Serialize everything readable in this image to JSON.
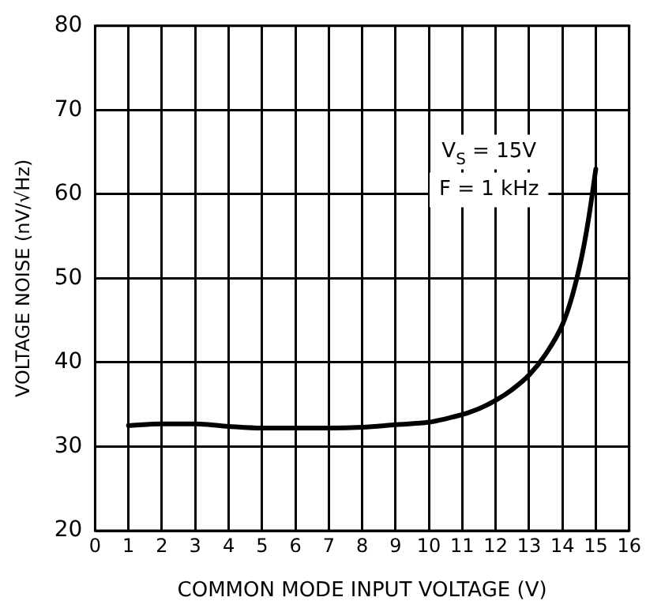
{
  "chart_data": {
    "type": "line",
    "xlabel": "COMMON MODE INPUT VOLTAGE (V)",
    "ylabel": "VOLTAGE NOISE (nV/√Hz)",
    "annotations": [
      "V$_{S}$ = 15V",
      "F = 1 kHz"
    ],
    "x": [
      1,
      2,
      3,
      4,
      5,
      6,
      7,
      8,
      9,
      10,
      10.5,
      11,
      11.5,
      12,
      12.5,
      13,
      13.5,
      14,
      14.3,
      14.6,
      14.8,
      15
    ],
    "series": [
      {
        "color": "#000000",
        "values": [
          32.5,
          32.7,
          32.7,
          32.4,
          32.2,
          32.2,
          32.2,
          32.3,
          32.6,
          32.9,
          33.3,
          33.8,
          34.5,
          35.5,
          36.8,
          38.5,
          41,
          44.5,
          48,
          53,
          57.5,
          63
        ]
      }
    ],
    "xlim": [
      0,
      16
    ],
    "xticks": [
      0,
      1,
      2,
      3,
      4,
      5,
      6,
      7,
      8,
      9,
      10,
      11,
      12,
      13,
      14,
      15,
      16
    ],
    "ylim": [
      20,
      80
    ],
    "yticks": [
      20,
      30,
      40,
      50,
      60,
      70,
      80
    ],
    "grid": true,
    "legend": false,
    "marker": "none",
    "line_style": "solid"
  }
}
